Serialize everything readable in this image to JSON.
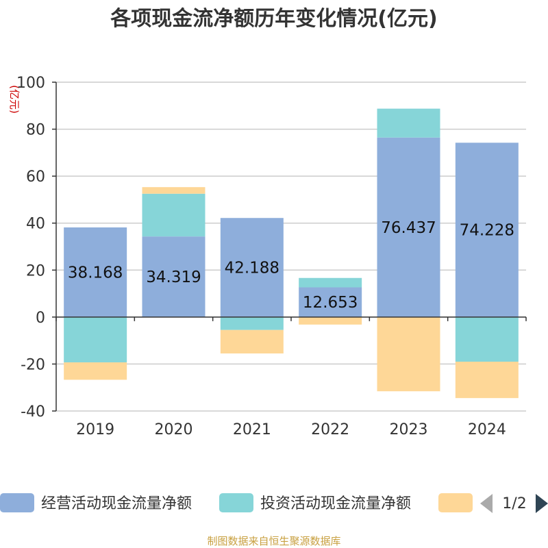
{
  "chart_data": {
    "type": "bar",
    "stacked": true,
    "title": "各项现金流净额历年变化情况(亿元)",
    "ylabel": "(亿元)",
    "xlabel": "",
    "categories": [
      "2019",
      "2020",
      "2021",
      "2022",
      "2023",
      "2024"
    ],
    "ylim": [
      -40,
      100
    ],
    "yticks": [
      100,
      80,
      60,
      40,
      20,
      0,
      -20,
      -40
    ],
    "grid": true,
    "series": [
      {
        "name": "经营活动现金流量净额",
        "color": "#8eaedb",
        "values": [
          38.168,
          34.319,
          42.188,
          12.653,
          76.437,
          74.228
        ],
        "show_labels": true
      },
      {
        "name": "投资活动现金流量净额",
        "color": "#86d5d8",
        "values": [
          -19.3,
          18.2,
          -5.5,
          4.0,
          12.3,
          -19.0
        ],
        "show_labels": false
      },
      {
        "name": "",
        "color": "#fed797",
        "values": [
          -7.4,
          2.8,
          -10.0,
          -3.2,
          -31.6,
          -15.5
        ],
        "show_labels": false
      }
    ],
    "legend": {
      "position": "bottom",
      "page": "1/2"
    }
  },
  "source_text": "制图数据来自恒生聚源数据库"
}
